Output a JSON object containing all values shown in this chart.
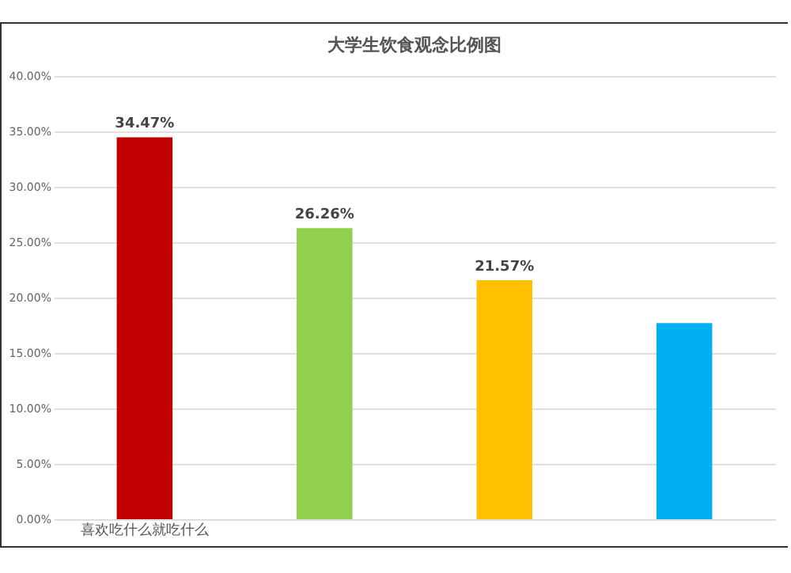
{
  "chart_data": {
    "type": "bar",
    "title": "大学生饮食观念比例图",
    "categories": [
      "喜欢吃什么就吃什么",
      null,
      null,
      null
    ],
    "values": [
      34.47,
      26.26,
      21.57,
      17.7
    ],
    "colors": [
      "#c00000",
      "#92d050",
      "#ffc000",
      "#00b0f0"
    ],
    "value_labels": [
      "34.47%",
      "26.26%",
      "21.57%",
      null
    ],
    "ylim": [
      0,
      40
    ],
    "yticks": [
      {
        "value": 0,
        "label": "0.00%"
      },
      {
        "value": 5,
        "label": "5.00%"
      },
      {
        "value": 10,
        "label": "10.00%"
      },
      {
        "value": 15,
        "label": "15.00%"
      },
      {
        "value": 20,
        "label": "20.00%"
      },
      {
        "value": 25,
        "label": "25.00%"
      },
      {
        "value": 30,
        "label": "30.00%"
      },
      {
        "value": 35,
        "label": "35.00%"
      },
      {
        "value": 40,
        "label": "40.00%"
      }
    ],
    "grid": "y"
  }
}
